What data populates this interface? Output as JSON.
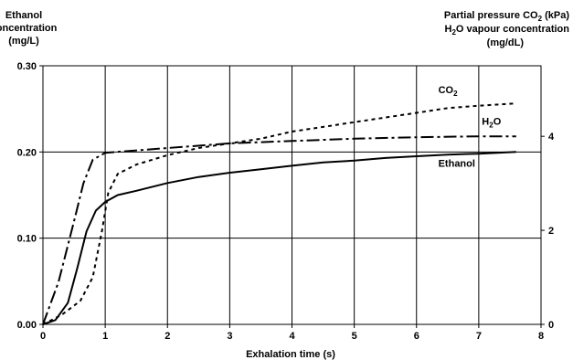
{
  "chart_data": {
    "type": "line",
    "left_axis_label": [
      "Ethanol",
      "concentration",
      "(mg/L)"
    ],
    "right_axis_label": {
      "line1_prefix": "Partial pressure CO",
      "line1_sub": "2",
      "line1_suffix": " (kPa)",
      "line2_prefix": "H",
      "line2_sub": "2",
      "line2_suffix": "O vapour concentration",
      "line3": "(mg/dL)"
    },
    "xlabel": "Exhalation time (s)",
    "xlim": [
      0,
      8
    ],
    "ylim_left": [
      0,
      0.3
    ],
    "ylim_right": [
      0,
      5.5
    ],
    "x_ticks": [
      "0",
      "1",
      "2",
      "3",
      "4",
      "5",
      "6",
      "7",
      "8"
    ],
    "y_left_ticks": [
      "0.00",
      "0.10",
      "0.20",
      "0.30"
    ],
    "y_right_ticks": [
      "0",
      "2",
      "4"
    ],
    "grid": true,
    "series": [
      {
        "name": "Ethanol",
        "axis": "left",
        "style": "solid",
        "label": {
          "prefix": "Ethanol",
          "sub": "",
          "suffix": ""
        },
        "points": [
          [
            0,
            0
          ],
          [
            0.2,
            0.005
          ],
          [
            0.4,
            0.025
          ],
          [
            0.55,
            0.065
          ],
          [
            0.7,
            0.108
          ],
          [
            0.85,
            0.132
          ],
          [
            1.0,
            0.142
          ],
          [
            1.2,
            0.15
          ],
          [
            1.5,
            0.155
          ],
          [
            2.0,
            0.164
          ],
          [
            2.5,
            0.171
          ],
          [
            3.0,
            0.176
          ],
          [
            3.5,
            0.18
          ],
          [
            4.0,
            0.184
          ],
          [
            4.5,
            0.188
          ],
          [
            5.0,
            0.19
          ],
          [
            5.5,
            0.193
          ],
          [
            6.0,
            0.195
          ],
          [
            6.5,
            0.197
          ],
          [
            7.0,
            0.198
          ],
          [
            7.6,
            0.2
          ]
        ]
      },
      {
        "name": "CO2",
        "axis": "right",
        "style": "dotted",
        "label": {
          "prefix": "CO",
          "sub": "2",
          "suffix": ""
        },
        "points": [
          [
            0,
            0
          ],
          [
            0.3,
            0.2
          ],
          [
            0.6,
            0.5
          ],
          [
            0.8,
            1.0
          ],
          [
            0.95,
            2.0
          ],
          [
            1.05,
            2.8
          ],
          [
            1.2,
            3.2
          ],
          [
            1.5,
            3.4
          ],
          [
            2.0,
            3.6
          ],
          [
            2.5,
            3.75
          ],
          [
            3.0,
            3.85
          ],
          [
            3.5,
            3.95
          ],
          [
            4.0,
            4.1
          ],
          [
            4.5,
            4.2
          ],
          [
            5.0,
            4.3
          ],
          [
            5.5,
            4.4
          ],
          [
            6.0,
            4.5
          ],
          [
            6.5,
            4.6
          ],
          [
            7.0,
            4.65
          ],
          [
            7.6,
            4.7
          ]
        ]
      },
      {
        "name": "H2O",
        "axis": "right",
        "style": "dashdot",
        "label": {
          "prefix": "H",
          "sub": "2",
          "suffix": "O"
        },
        "points": [
          [
            0,
            0
          ],
          [
            0.25,
            0.9
          ],
          [
            0.5,
            2.2
          ],
          [
            0.65,
            3.0
          ],
          [
            0.8,
            3.5
          ],
          [
            1.0,
            3.65
          ],
          [
            1.5,
            3.7
          ],
          [
            2.0,
            3.75
          ],
          [
            3.0,
            3.85
          ],
          [
            4.0,
            3.9
          ],
          [
            5.0,
            3.95
          ],
          [
            6.0,
            3.98
          ],
          [
            7.0,
            4.0
          ],
          [
            7.6,
            4.0
          ]
        ]
      }
    ]
  }
}
